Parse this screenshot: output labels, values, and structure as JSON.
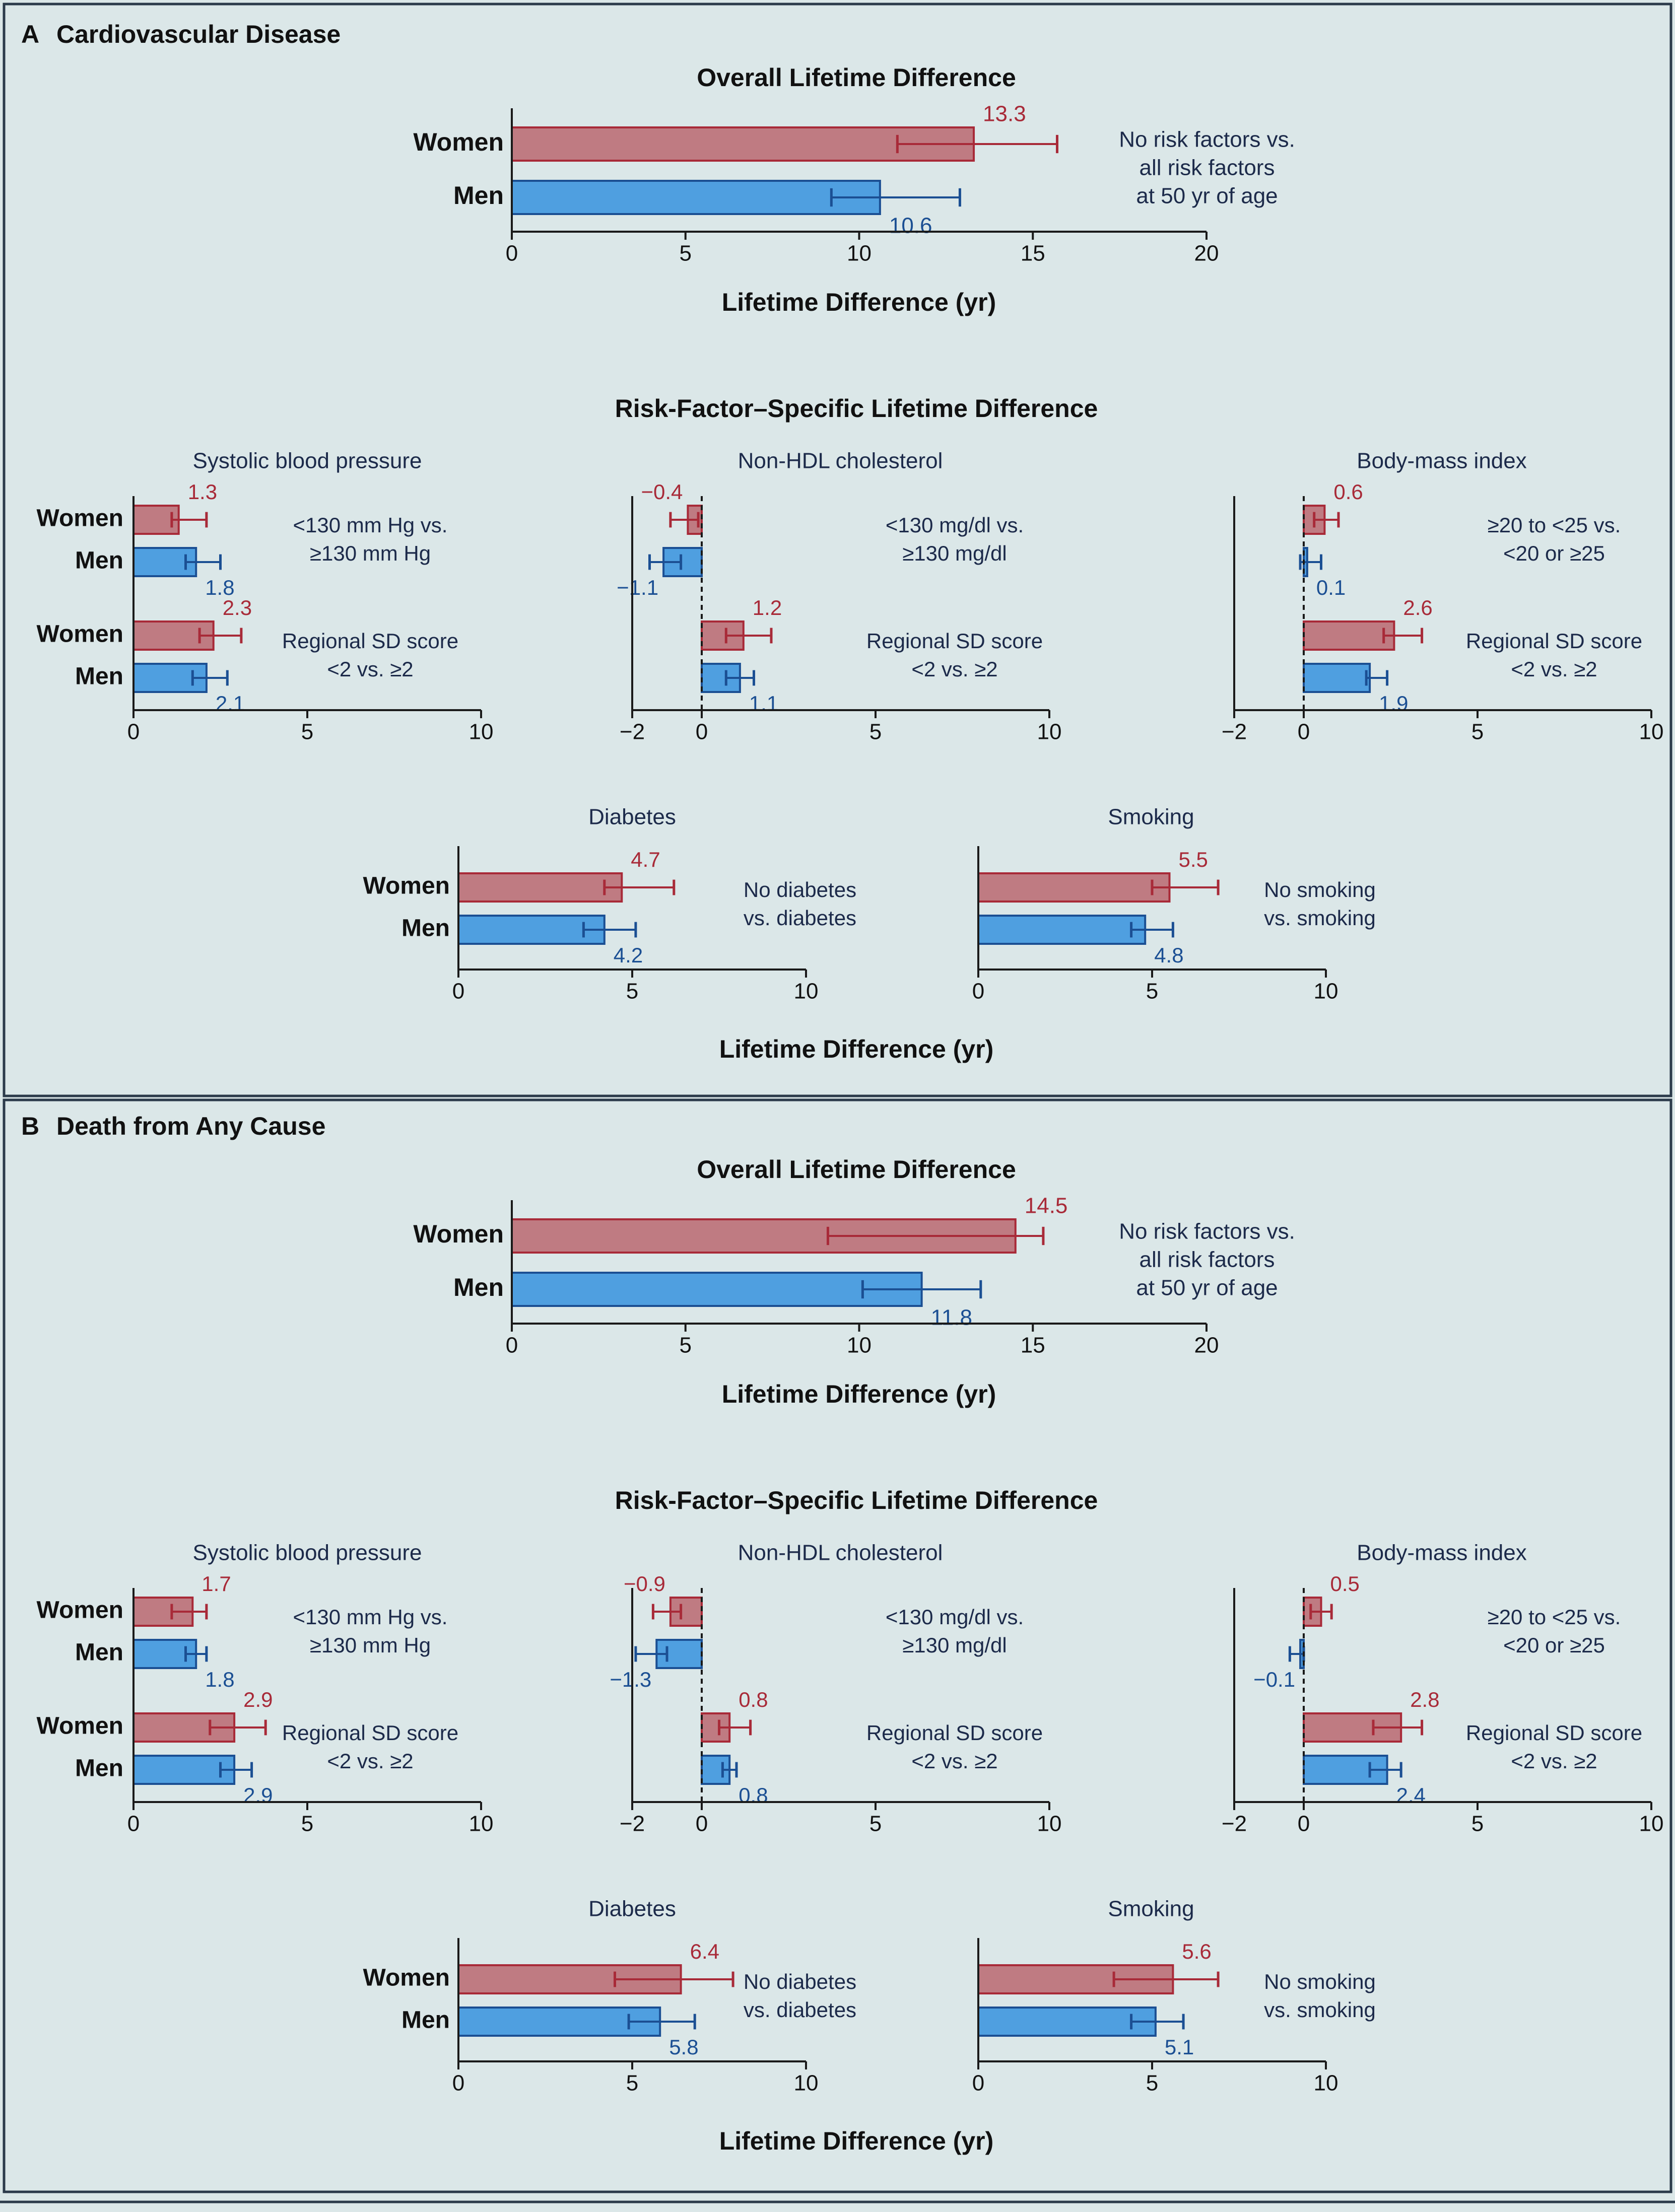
{
  "colors": {
    "women_fill": "#bf7b82",
    "women_line": "#a82a38",
    "men_fill": "#4f9fe0",
    "men_line": "#1b4f93",
    "axis": "#1a1a1a",
    "text": "#1c2a4a",
    "background": "#dbe7e8",
    "frame": "#2b3a4a"
  },
  "chart_data": [
    {
      "panel": "A",
      "panel_title": "Cardiovascular Disease",
      "shared_xlabel": "Lifetime Difference (yr)",
      "overall": {
        "type": "bar",
        "title": "Overall Lifetime Difference",
        "xlabel": "Lifetime Difference (yr)",
        "xlim": [
          0,
          20
        ],
        "xticks": [
          0,
          5,
          10,
          15,
          20
        ],
        "annotation": [
          "No risk factors vs.",
          "all risk factors",
          "at 50 yr of age"
        ],
        "rows": [
          {
            "group": "Women",
            "value": 13.3,
            "ci": [
              11.1,
              15.7
            ],
            "value_label": "13.3"
          },
          {
            "group": "Men",
            "value": 10.6,
            "ci": [
              9.2,
              12.9
            ],
            "value_label": "10.6"
          }
        ]
      },
      "specific_title": "Risk-Factor–Specific Lifetime Difference",
      "specific": [
        {
          "type": "bar",
          "title": "Systolic blood pressure",
          "xlim": [
            0,
            10
          ],
          "xticks": [
            0,
            5,
            10
          ],
          "groups": [
            {
              "annotation": [
                "<130 mm Hg vs.",
                "≥130 mm Hg"
              ],
              "rows": [
                {
                  "group": "Women",
                  "value": 1.3,
                  "ci": [
                    1.1,
                    2.1
                  ],
                  "value_label": "1.3"
                },
                {
                  "group": "Men",
                  "value": 1.8,
                  "ci": [
                    1.5,
                    2.5
                  ],
                  "value_label": "1.8"
                }
              ]
            },
            {
              "annotation": [
                "Regional SD score",
                "<2 vs. ≥2"
              ],
              "rows": [
                {
                  "group": "Women",
                  "value": 2.3,
                  "ci": [
                    1.9,
                    3.1
                  ],
                  "value_label": "2.3"
                },
                {
                  "group": "Men",
                  "value": 2.1,
                  "ci": [
                    1.7,
                    2.7
                  ],
                  "value_label": "2.1"
                }
              ]
            }
          ]
        },
        {
          "type": "bar",
          "title": "Non-HDL cholesterol",
          "xlim": [
            -2,
            10
          ],
          "xticks": [
            -2,
            0,
            5,
            10
          ],
          "groups": [
            {
              "annotation": [
                "<130 mg/dl vs.",
                "≥130 mg/dl"
              ],
              "rows": [
                {
                  "group": "Women",
                  "value": -0.4,
                  "ci": [
                    -0.9,
                    -0.1
                  ],
                  "value_label": "−0.4"
                },
                {
                  "group": "Men",
                  "value": -1.1,
                  "ci": [
                    -1.5,
                    -0.6
                  ],
                  "value_label": "−1.1"
                }
              ]
            },
            {
              "annotation": [
                "Regional SD score",
                "<2 vs. ≥2"
              ],
              "rows": [
                {
                  "group": "Women",
                  "value": 1.2,
                  "ci": [
                    0.7,
                    2.0
                  ],
                  "value_label": "1.2"
                },
                {
                  "group": "Men",
                  "value": 1.1,
                  "ci": [
                    0.7,
                    1.5
                  ],
                  "value_label": "1.1"
                }
              ]
            }
          ]
        },
        {
          "type": "bar",
          "title": "Body-mass index",
          "xlim": [
            -2,
            10
          ],
          "xticks": [
            -2,
            0,
            5,
            10
          ],
          "groups": [
            {
              "annotation": [
                "≥20 to <25 vs.",
                "<20 or ≥25"
              ],
              "rows": [
                {
                  "group": "Women",
                  "value": 0.6,
                  "ci": [
                    0.3,
                    1.0
                  ],
                  "value_label": "0.6"
                },
                {
                  "group": "Men",
                  "value": 0.1,
                  "ci": [
                    -0.1,
                    0.5
                  ],
                  "value_label": "0.1"
                }
              ]
            },
            {
              "annotation": [
                "Regional SD score",
                "<2 vs. ≥2"
              ],
              "rows": [
                {
                  "group": "Women",
                  "value": 2.6,
                  "ci": [
                    2.3,
                    3.4
                  ],
                  "value_label": "2.6"
                },
                {
                  "group": "Men",
                  "value": 1.9,
                  "ci": [
                    1.8,
                    2.4
                  ],
                  "value_label": "1.9"
                }
              ]
            }
          ]
        },
        {
          "type": "bar",
          "title": "Diabetes",
          "xlim": [
            0,
            10
          ],
          "xticks": [
            0,
            5,
            10
          ],
          "groups": [
            {
              "annotation": [
                "No diabetes",
                "vs. diabetes"
              ],
              "rows": [
                {
                  "group": "Women",
                  "value": 4.7,
                  "ci": [
                    4.2,
                    6.2
                  ],
                  "value_label": "4.7"
                },
                {
                  "group": "Men",
                  "value": 4.2,
                  "ci": [
                    3.6,
                    5.1
                  ],
                  "value_label": "4.2"
                }
              ]
            }
          ]
        },
        {
          "type": "bar",
          "title": "Smoking",
          "xlim": [
            0,
            10
          ],
          "xticks": [
            0,
            5,
            10
          ],
          "groups": [
            {
              "annotation": [
                "No smoking",
                "vs. smoking"
              ],
              "rows": [
                {
                  "group": "Women",
                  "value": 5.5,
                  "ci": [
                    5.0,
                    6.9
                  ],
                  "value_label": "5.5"
                },
                {
                  "group": "Men",
                  "value": 4.8,
                  "ci": [
                    4.4,
                    5.6
                  ],
                  "value_label": "4.8"
                }
              ]
            }
          ]
        }
      ]
    },
    {
      "panel": "B",
      "panel_title": "Death from Any Cause",
      "shared_xlabel": "Lifetime Difference (yr)",
      "overall": {
        "type": "bar",
        "title": "Overall Lifetime Difference",
        "xlabel": "Lifetime Difference (yr)",
        "xlim": [
          0,
          20
        ],
        "xticks": [
          0,
          5,
          10,
          15,
          20
        ],
        "annotation": [
          "No risk factors vs.",
          "all risk factors",
          "at 50 yr of age"
        ],
        "rows": [
          {
            "group": "Women",
            "value": 14.5,
            "ci": [
              9.1,
              15.3
            ],
            "value_label": "14.5"
          },
          {
            "group": "Men",
            "value": 11.8,
            "ci": [
              10.1,
              13.5
            ],
            "value_label": "11.8"
          }
        ]
      },
      "specific_title": "Risk-Factor–Specific Lifetime Difference",
      "specific": [
        {
          "type": "bar",
          "title": "Systolic blood pressure",
          "xlim": [
            0,
            10
          ],
          "xticks": [
            0,
            5,
            10
          ],
          "groups": [
            {
              "annotation": [
                "<130 mm Hg vs.",
                "≥130 mm Hg"
              ],
              "rows": [
                {
                  "group": "Women",
                  "value": 1.7,
                  "ci": [
                    1.1,
                    2.1
                  ],
                  "value_label": "1.7"
                },
                {
                  "group": "Men",
                  "value": 1.8,
                  "ci": [
                    1.5,
                    2.1
                  ],
                  "value_label": "1.8"
                }
              ]
            },
            {
              "annotation": [
                "Regional SD score",
                "<2 vs. ≥2"
              ],
              "rows": [
                {
                  "group": "Women",
                  "value": 2.9,
                  "ci": [
                    2.2,
                    3.8
                  ],
                  "value_label": "2.9"
                },
                {
                  "group": "Men",
                  "value": 2.9,
                  "ci": [
                    2.5,
                    3.4
                  ],
                  "value_label": "2.9"
                }
              ]
            }
          ]
        },
        {
          "type": "bar",
          "title": "Non-HDL cholesterol",
          "xlim": [
            -2,
            10
          ],
          "xticks": [
            -2,
            0,
            5,
            10
          ],
          "groups": [
            {
              "annotation": [
                "<130 mg/dl vs.",
                "≥130 mg/dl"
              ],
              "rows": [
                {
                  "group": "Women",
                  "value": -0.9,
                  "ci": [
                    -1.4,
                    -0.6
                  ],
                  "value_label": "−0.9"
                },
                {
                  "group": "Men",
                  "value": -1.3,
                  "ci": [
                    -1.9,
                    -1.0
                  ],
                  "value_label": "−1.3"
                }
              ]
            },
            {
              "annotation": [
                "Regional SD score",
                "<2 vs. ≥2"
              ],
              "rows": [
                {
                  "group": "Women",
                  "value": 0.8,
                  "ci": [
                    0.5,
                    1.4
                  ],
                  "value_label": "0.8"
                },
                {
                  "group": "Men",
                  "value": 0.8,
                  "ci": [
                    0.6,
                    1.0
                  ],
                  "value_label": "0.8"
                }
              ]
            }
          ]
        },
        {
          "type": "bar",
          "title": "Body-mass index",
          "xlim": [
            -2,
            10
          ],
          "xticks": [
            -2,
            0,
            5,
            10
          ],
          "groups": [
            {
              "annotation": [
                "≥20 to <25 vs.",
                "<20 or ≥25"
              ],
              "rows": [
                {
                  "group": "Women",
                  "value": 0.5,
                  "ci": [
                    0.2,
                    0.8
                  ],
                  "value_label": "0.5"
                },
                {
                  "group": "Men",
                  "value": -0.1,
                  "ci": [
                    -0.4,
                    0.0
                  ],
                  "value_label": "−0.1"
                }
              ]
            },
            {
              "annotation": [
                "Regional SD score",
                "<2 vs. ≥2"
              ],
              "rows": [
                {
                  "group": "Women",
                  "value": 2.8,
                  "ci": [
                    2.0,
                    3.4
                  ],
                  "value_label": "2.8"
                },
                {
                  "group": "Men",
                  "value": 2.4,
                  "ci": [
                    1.9,
                    2.8
                  ],
                  "value_label": "2.4"
                }
              ]
            }
          ]
        },
        {
          "type": "bar",
          "title": "Diabetes",
          "xlim": [
            0,
            10
          ],
          "xticks": [
            0,
            5,
            10
          ],
          "groups": [
            {
              "annotation": [
                "No diabetes",
                "vs. diabetes"
              ],
              "rows": [
                {
                  "group": "Women",
                  "value": 6.4,
                  "ci": [
                    4.5,
                    7.9
                  ],
                  "value_label": "6.4"
                },
                {
                  "group": "Men",
                  "value": 5.8,
                  "ci": [
                    4.9,
                    6.8
                  ],
                  "value_label": "5.8"
                }
              ]
            }
          ]
        },
        {
          "type": "bar",
          "title": "Smoking",
          "xlim": [
            0,
            10
          ],
          "xticks": [
            0,
            5,
            10
          ],
          "groups": [
            {
              "annotation": [
                "No smoking",
                "vs. smoking"
              ],
              "rows": [
                {
                  "group": "Women",
                  "value": 5.6,
                  "ci": [
                    3.9,
                    6.9
                  ],
                  "value_label": "5.6"
                },
                {
                  "group": "Men",
                  "value": 5.1,
                  "ci": [
                    4.4,
                    5.9
                  ],
                  "value_label": "5.1"
                }
              ]
            }
          ]
        }
      ]
    }
  ]
}
